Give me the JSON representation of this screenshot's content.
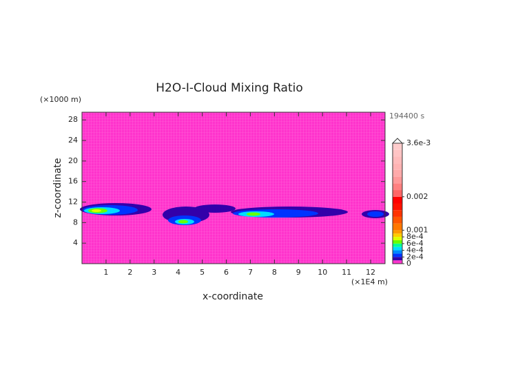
{
  "chart_data": {
    "type": "contour",
    "title": "H2O-I-Cloud Mixing Ratio",
    "time_label": "194400 s",
    "x_label": "x-coordinate",
    "y_label": "z-coordinate",
    "x_unit": "(×1E4 m)",
    "y_unit": "(×1000 m)",
    "xlim": [
      0,
      12.6
    ],
    "ylim": [
      0,
      29.5
    ],
    "xticks": [
      1,
      2,
      3,
      4,
      5,
      6,
      7,
      8,
      9,
      10,
      11,
      12
    ],
    "yticks": [
      4,
      8,
      12,
      16,
      20,
      24,
      28
    ],
    "background_color": "#ff33cc",
    "colorbar": {
      "levels": [
        0,
        0.0001,
        0.0002,
        0.0003,
        0.0004,
        0.0005,
        0.0006,
        0.0007,
        0.0008,
        0.0009,
        0.001,
        0.0012,
        0.0014,
        0.0016,
        0.0018,
        0.002,
        0.0022,
        0.0024,
        0.0026,
        0.0028,
        0.003,
        0.0032,
        0.0034,
        0.0036
      ],
      "colors": [
        "#ff33cc",
        "#3300aa",
        "#0033ff",
        "#0088ff",
        "#00ddff",
        "#00ff99",
        "#66ff00",
        "#ddff00",
        "#ffcc00",
        "#ff9900",
        "#ff7700",
        "#ff5500",
        "#ff3300",
        "#ff1100",
        "#ff0000",
        "#ff6666",
        "#ff8080",
        "#ff9999",
        "#ffaaaa",
        "#ffb3b3",
        "#ffbbbb",
        "#ffc4c4",
        "#ffcccc"
      ],
      "ticks": [
        0,
        {
          "value": 0.0002,
          "label": "2e-4"
        },
        {
          "value": 0.0004,
          "label": "4e-4"
        },
        {
          "value": 0.0006,
          "label": "6e-4"
        },
        {
          "value": 0.0008,
          "label": "8e-4"
        },
        0.001,
        0.002,
        {
          "value": 0.0036,
          "label": "3.6e-3"
        }
      ]
    }
  }
}
